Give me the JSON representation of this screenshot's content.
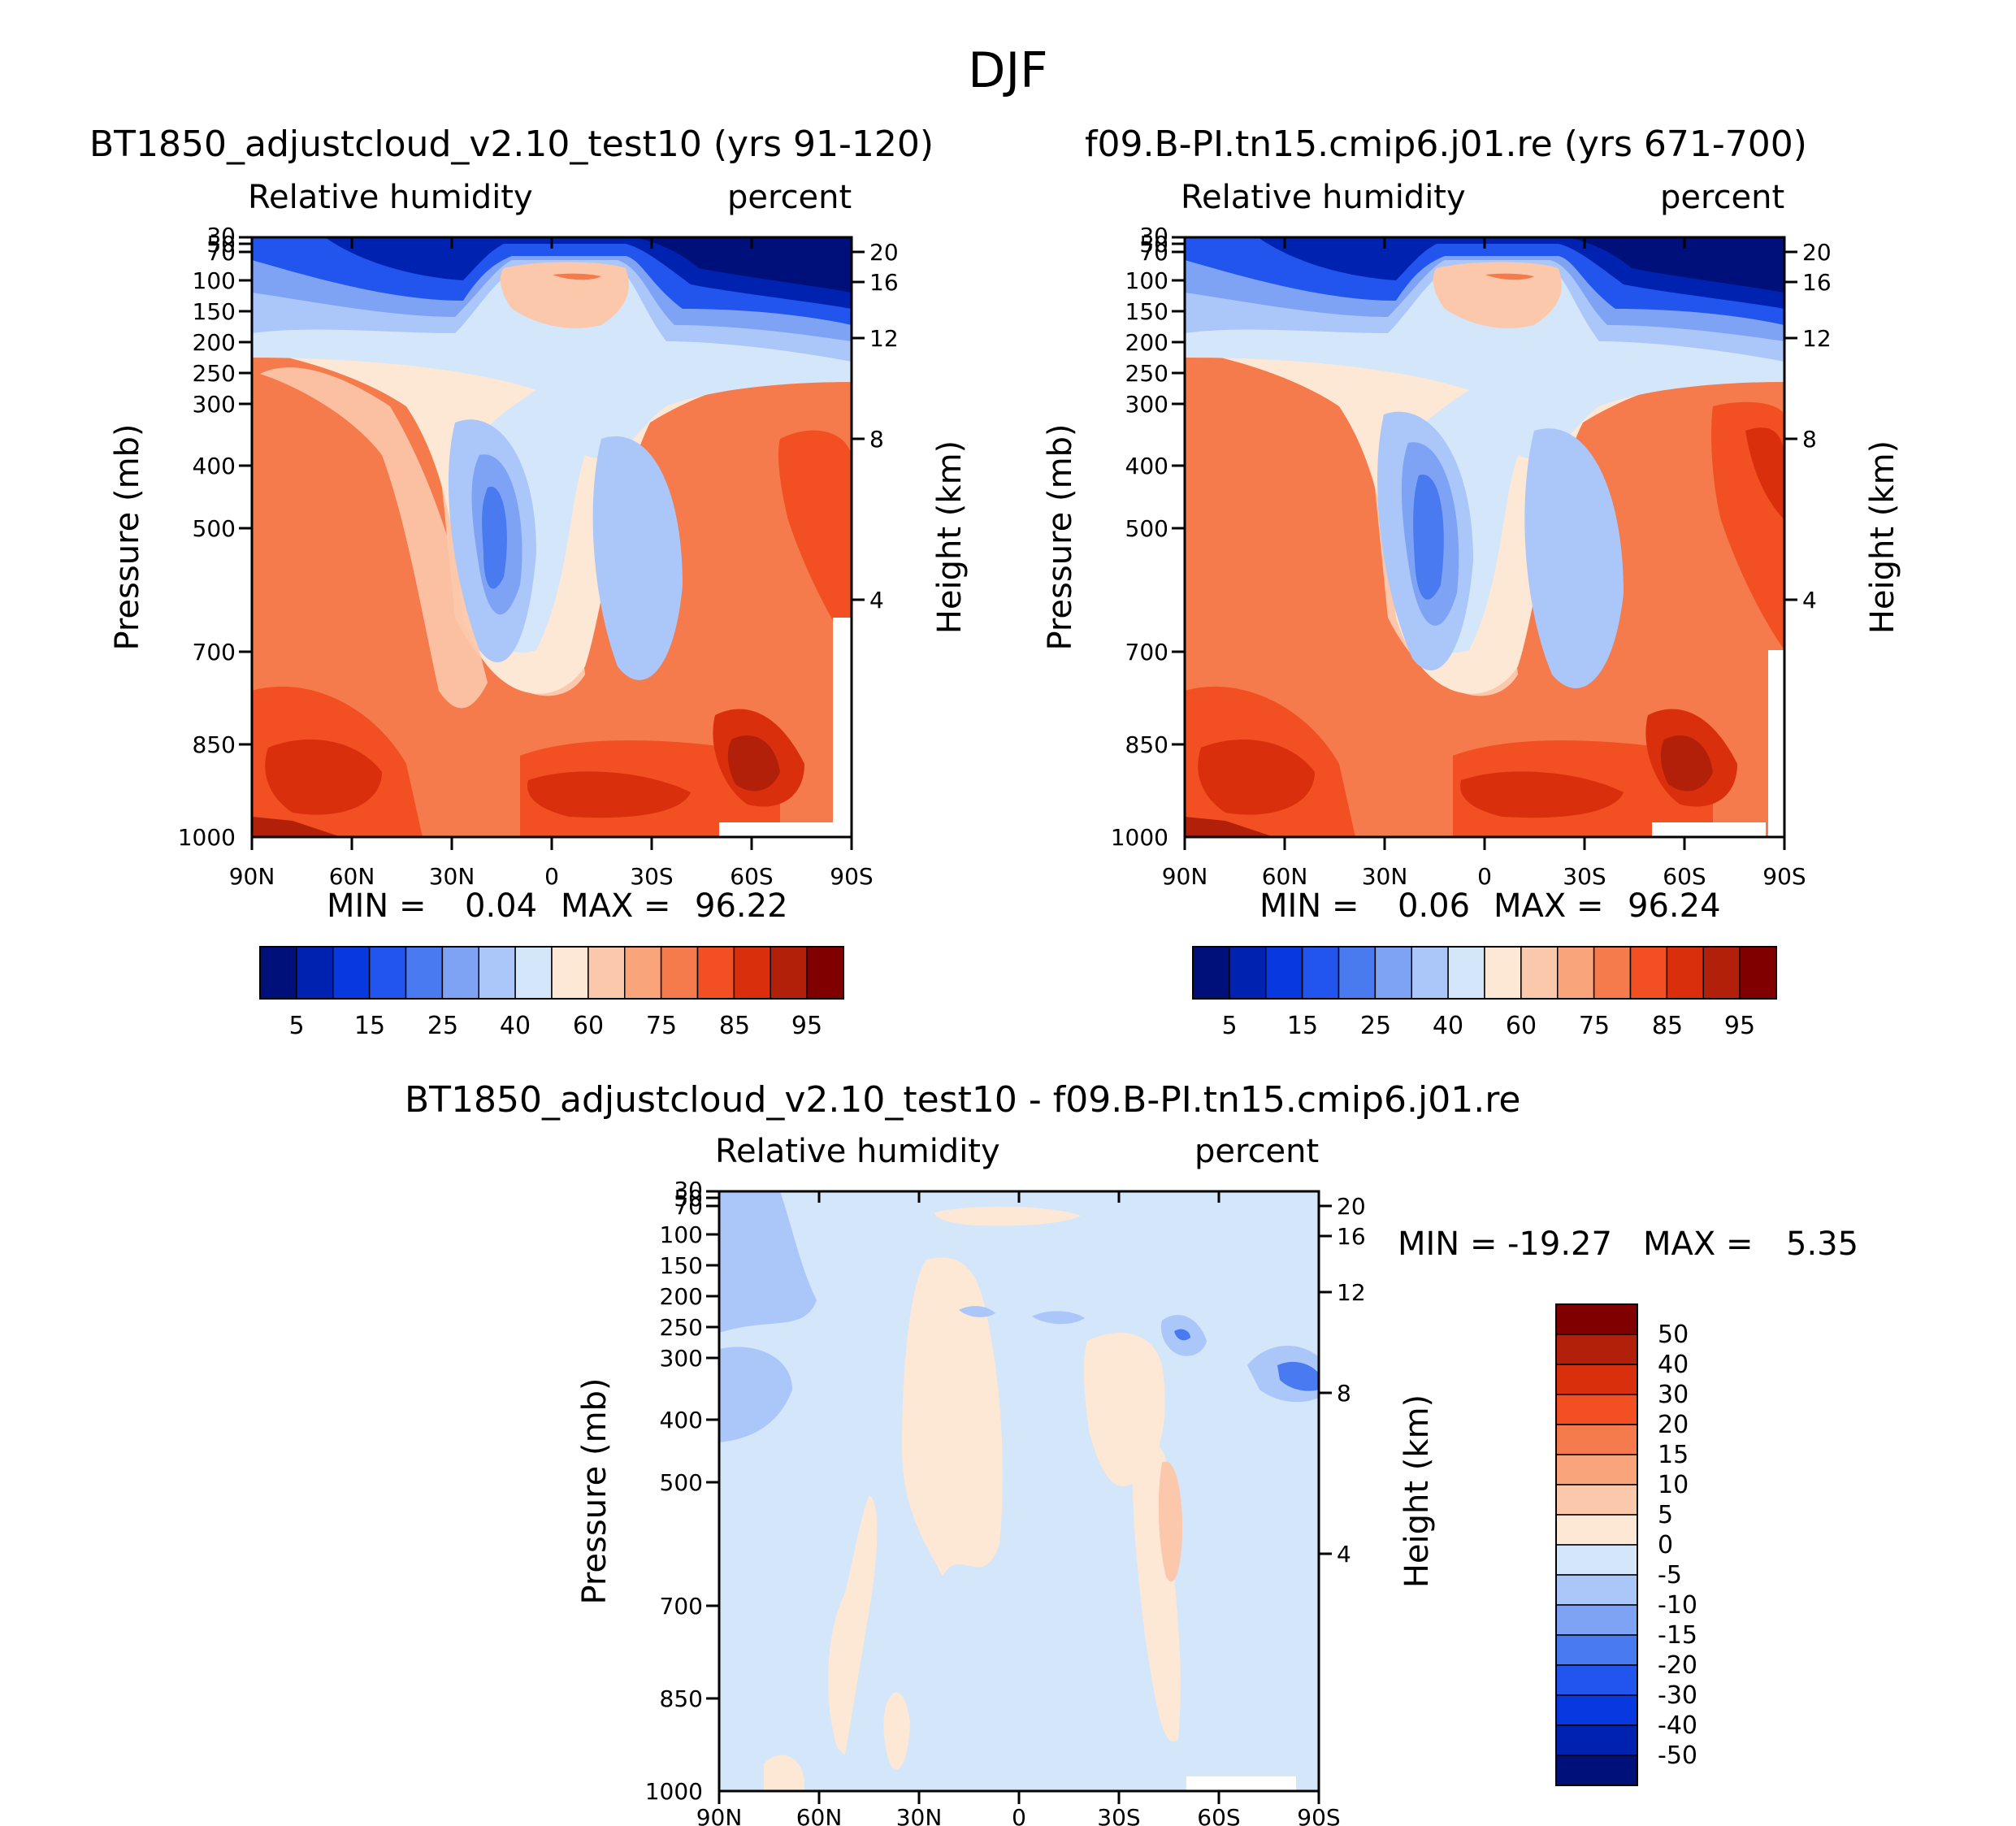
{
  "figure": {
    "title": "DJF"
  },
  "chart_data": [
    {
      "type": "contour",
      "title": "BT1850_adjustcloud_v2.10_test10 (yrs 91-120)",
      "variable": "Relative humidity",
      "units": "percent",
      "ylabel": "Pressure (mb)",
      "ylabel2": "Height (km)",
      "x_ticks": [
        "90N",
        "60N",
        "30N",
        "0",
        "30S",
        "60S",
        "90S"
      ],
      "y_ticks": [
        "30",
        "50",
        "70",
        "100",
        "150",
        "200",
        "250",
        "300",
        "400",
        "500",
        "700",
        "850",
        "1000"
      ],
      "y2_ticks": [
        "20",
        "16",
        "12",
        "8",
        "4"
      ],
      "min_label": "MIN =",
      "min_value": "0.04",
      "max_label": "MAX =",
      "max_value": "96.22",
      "colorbar": {
        "colors": [
          "#00107a",
          "#0022b0",
          "#0838e0",
          "#2255ee",
          "#4a7af0",
          "#7fa3f4",
          "#abc6f8",
          "#d4e6f9",
          "#fde8d6",
          "#fcc8ac",
          "#faa47c",
          "#f57b4c",
          "#f24f22",
          "#d92f0c",
          "#b3200a",
          "#800000"
        ],
        "labels": [
          "5",
          "15",
          "25",
          "40",
          "60",
          "75",
          "85",
          "95"
        ]
      }
    },
    {
      "type": "contour",
      "title": "f09.B-PI.tn15.cmip6.j01.re (yrs 671-700)",
      "variable": "Relative humidity",
      "units": "percent",
      "ylabel": "Pressure (mb)",
      "ylabel2": "Height (km)",
      "x_ticks": [
        "90N",
        "60N",
        "30N",
        "0",
        "30S",
        "60S",
        "90S"
      ],
      "y_ticks": [
        "30",
        "50",
        "70",
        "100",
        "150",
        "200",
        "250",
        "300",
        "400",
        "500",
        "700",
        "850",
        "1000"
      ],
      "y2_ticks": [
        "20",
        "16",
        "12",
        "8",
        "4"
      ],
      "min_label": "MIN =",
      "min_value": "0.06",
      "max_label": "MAX =",
      "max_value": "96.24",
      "colorbar": {
        "colors": [
          "#00107a",
          "#0022b0",
          "#0838e0",
          "#2255ee",
          "#4a7af0",
          "#7fa3f4",
          "#abc6f8",
          "#d4e6f9",
          "#fde8d6",
          "#fcc8ac",
          "#faa47c",
          "#f57b4c",
          "#f24f22",
          "#d92f0c",
          "#b3200a",
          "#800000"
        ],
        "labels": [
          "5",
          "15",
          "25",
          "40",
          "60",
          "75",
          "85",
          "95"
        ]
      }
    },
    {
      "type": "contour",
      "title": "BT1850_adjustcloud_v2.10_test10 - f09.B-PI.tn15.cmip6.j01.re",
      "variable": "Relative humidity",
      "units": "percent",
      "ylabel": "Pressure (mb)",
      "ylabel2": "Height (km)",
      "x_ticks": [
        "90N",
        "60N",
        "30N",
        "0",
        "30S",
        "60S",
        "90S"
      ],
      "y_ticks": [
        "30",
        "50",
        "70",
        "100",
        "150",
        "200",
        "250",
        "300",
        "400",
        "500",
        "700",
        "850",
        "1000"
      ],
      "y2_ticks": [
        "20",
        "16",
        "12",
        "8",
        "4"
      ],
      "min_label": "MIN =",
      "min_value": "-19.27",
      "max_label": "MAX =",
      "max_value": "5.35",
      "colorbar": {
        "colors": [
          "#800000",
          "#b3200a",
          "#d92f0c",
          "#f24f22",
          "#f57b4c",
          "#faa47c",
          "#fcc8ac",
          "#fde8d6",
          "#d4e6f9",
          "#abc6f8",
          "#7fa3f4",
          "#4a7af0",
          "#2255ee",
          "#0838e0",
          "#0022b0",
          "#00107a"
        ],
        "labels": [
          "50",
          "40",
          "30",
          "20",
          "15",
          "10",
          "5",
          "0",
          "-5",
          "-10",
          "-15",
          "-20",
          "-30",
          "-40",
          "-50"
        ]
      }
    }
  ]
}
